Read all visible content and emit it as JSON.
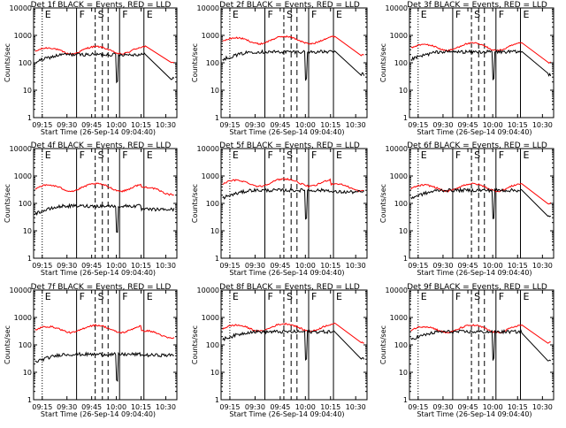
{
  "chart_data": {
    "type": "line",
    "grid": false,
    "yscale": "log",
    "ylim": [
      1,
      10000
    ],
    "yticks": [
      "1",
      "10",
      "100",
      "1000",
      "10000"
    ],
    "ylabel": "Counts/sec",
    "xlabel": "Start Time (26-Sep-14 09:04:40)",
    "colors": {
      "events": "#000000",
      "lld": "#ff0000"
    },
    "panels": [
      {
        "title": "Det 1f BLACK = Events, RED = LLD",
        "xticks": [
          "09:15",
          "09:30",
          "09:45",
          "10:00",
          "10:15",
          "10:30"
        ],
        "markers": [
          {
            "t": 0.06,
            "l": "E"
          },
          {
            "t": 0.3,
            "l": "F"
          },
          {
            "t": 0.43,
            "l": "S"
          },
          {
            "t": 0.6,
            "l": "F"
          },
          {
            "t": 0.77,
            "l": "E"
          }
        ],
        "gap": [
          0.78,
          0.96
        ],
        "lld": {
          "base": 300,
          "after": 140
        },
        "events": {
          "base": 200,
          "after": 28
        }
      },
      {
        "title": "Det 2f BLACK = Events, RED = LLD",
        "xticks": [
          "09:15",
          "09:30",
          "09:45",
          "10:00",
          "10:15",
          "10:30"
        ],
        "markers": [
          {
            "t": 0.06,
            "l": "E"
          },
          {
            "t": 0.3,
            "l": "F"
          },
          {
            "t": 0.43,
            "l": "S"
          },
          {
            "t": 0.6,
            "l": "F"
          },
          {
            "t": 0.77,
            "l": "E"
          }
        ],
        "gap": [
          0.78,
          0.96
        ],
        "lld": {
          "base": 700,
          "after": 280
        },
        "events": {
          "base": 250,
          "after": 38
        }
      },
      {
        "title": "Det 3f BLACK = Events, RED = LLD",
        "xticks": [
          "09:15",
          "09:30",
          "09:45",
          "10:00",
          "10:15",
          "10:30"
        ],
        "markers": [
          {
            "t": 0.06,
            "l": "E"
          },
          {
            "t": 0.3,
            "l": "F"
          },
          {
            "t": 0.43,
            "l": "S"
          },
          {
            "t": 0.6,
            "l": "F"
          },
          {
            "t": 0.77,
            "l": "E"
          }
        ],
        "gap": [
          0.78,
          0.96
        ],
        "lld": {
          "base": 400,
          "after": 140
        },
        "events": {
          "base": 250,
          "after": 38
        }
      },
      {
        "title": "Det 4f BLACK = Events, RED = LLD",
        "xticks": [
          "09:15",
          "09:30",
          "09:45",
          "10:00",
          "10:15",
          "10:30"
        ],
        "markers": [
          {
            "t": 0.06,
            "l": "E"
          },
          {
            "t": 0.3,
            "l": "F"
          },
          {
            "t": 0.43,
            "l": "S"
          },
          {
            "t": 0.6,
            "l": "F"
          },
          {
            "t": 0.77,
            "l": "E"
          }
        ],
        "gap": null,
        "lld": {
          "base": 400,
          "after": 300
        },
        "events": {
          "base": 80,
          "after": 60
        }
      },
      {
        "title": "Det 5f BLACK = Events, RED = LLD",
        "xticks": [
          "09:15",
          "09:30",
          "09:45",
          "10:00",
          "10:15",
          "10:30"
        ],
        "markers": [
          {
            "t": 0.06,
            "l": "E"
          },
          {
            "t": 0.3,
            "l": "F"
          },
          {
            "t": 0.43,
            "l": "S"
          },
          {
            "t": 0.6,
            "l": "F"
          },
          {
            "t": 0.77,
            "l": "E"
          }
        ],
        "gap": null,
        "lld": {
          "base": 600,
          "after": 400
        },
        "events": {
          "base": 300,
          "after": 260
        }
      },
      {
        "title": "Det 6f BLACK = Events, RED = LLD",
        "xticks": [
          "09:15",
          "09:30",
          "09:45",
          "10:00",
          "10:15",
          "10:30"
        ],
        "markers": [
          {
            "t": 0.06,
            "l": "E"
          },
          {
            "t": 0.3,
            "l": "F"
          },
          {
            "t": 0.43,
            "l": "S"
          },
          {
            "t": 0.6,
            "l": "F"
          },
          {
            "t": 0.77,
            "l": "E"
          }
        ],
        "gap": [
          0.78,
          0.96
        ],
        "lld": {
          "base": 400,
          "after": 140
        },
        "events": {
          "base": 300,
          "after": 32
        }
      },
      {
        "title": "Det 7f BLACK = Events, RED = LLD",
        "xticks": [
          "09:15",
          "09:30",
          "09:45",
          "10:00",
          "10:15",
          "10:30"
        ],
        "markers": [
          {
            "t": 0.06,
            "l": "E"
          },
          {
            "t": 0.3,
            "l": "F"
          },
          {
            "t": 0.43,
            "l": "S"
          },
          {
            "t": 0.6,
            "l": "F"
          },
          {
            "t": 0.77,
            "l": "E"
          }
        ],
        "gap": null,
        "lld": {
          "base": 400,
          "after": 250
        },
        "events": {
          "base": 45,
          "after": 42
        }
      },
      {
        "title": "Det 8f BLACK = Events, RED = LLD",
        "xticks": [
          "09:15",
          "09:30",
          "09:45",
          "10:00",
          "10:15",
          "10:30"
        ],
        "markers": [
          {
            "t": 0.06,
            "l": "E"
          },
          {
            "t": 0.3,
            "l": "F"
          },
          {
            "t": 0.43,
            "l": "S"
          },
          {
            "t": 0.6,
            "l": "F"
          },
          {
            "t": 0.77,
            "l": "E"
          }
        ],
        "gap": [
          0.78,
          0.96
        ],
        "lld": {
          "base": 450,
          "after": 170
        },
        "events": {
          "base": 300,
          "after": 30
        }
      },
      {
        "title": "Det 9f BLACK = Events, RED = LLD",
        "xticks": [
          "09:15",
          "09:30",
          "09:45",
          "10:00",
          "10:15",
          "10:30"
        ],
        "markers": [
          {
            "t": 0.06,
            "l": "E"
          },
          {
            "t": 0.3,
            "l": "F"
          },
          {
            "t": 0.43,
            "l": "S"
          },
          {
            "t": 0.6,
            "l": "F"
          },
          {
            "t": 0.77,
            "l": "E"
          }
        ],
        "gap": [
          0.78,
          0.96
        ],
        "lld": {
          "base": 400,
          "after": 170
        },
        "events": {
          "base": 300,
          "after": 26
        }
      }
    ]
  }
}
